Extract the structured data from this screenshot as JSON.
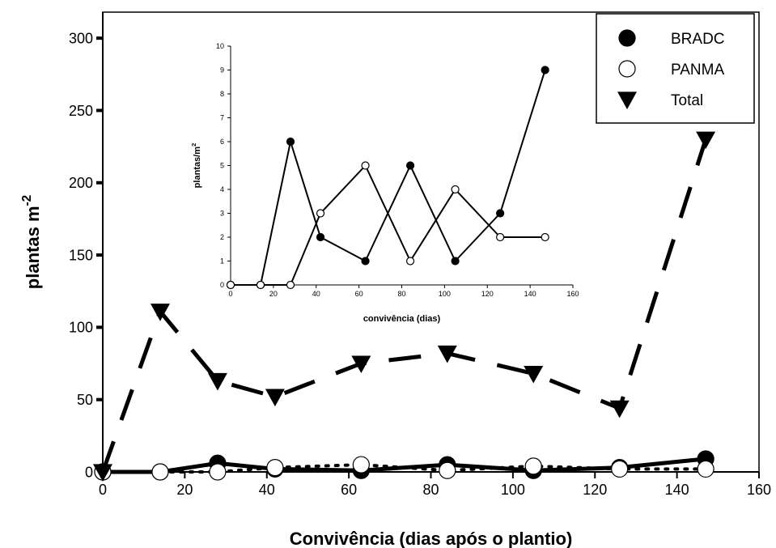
{
  "chart_data": [
    {
      "type": "line",
      "x_label": "Convivência (dias após o plantio)",
      "y_label": "plantas m",
      "y_label_sup": "-2",
      "x": [
        0,
        14,
        28,
        42,
        63,
        84,
        105,
        126,
        147
      ],
      "series": [
        {
          "name": "BRADC",
          "color": "#000000",
          "marker": "filled-circle",
          "line": "solid",
          "values": [
            0,
            0,
            6,
            2,
            1,
            5,
            1,
            3,
            9
          ]
        },
        {
          "name": "PANMA",
          "color": "#000000",
          "marker": "open-circle",
          "line": "dotted",
          "values": [
            0,
            0,
            0,
            3,
            5,
            1,
            4,
            2,
            2
          ]
        },
        {
          "name": "Total",
          "color": "#000000",
          "marker": "triangle",
          "line": "dashed",
          "values": [
            0,
            111,
            63,
            52,
            75,
            82,
            68,
            44,
            230
          ]
        }
      ],
      "xlim": [
        0,
        160
      ],
      "xticks": [
        0,
        20,
        40,
        60,
        80,
        100,
        120,
        140,
        160
      ],
      "ylim": [
        0,
        318
      ],
      "yticks": [
        0,
        50,
        100,
        150,
        200,
        250,
        300
      ],
      "legend": "top-right",
      "frame": true
    },
    {
      "type": "line",
      "x_label": "convivência (dias)",
      "y_label": "plantas/m",
      "y_label_sup": "2",
      "x": [
        0,
        14,
        28,
        42,
        63,
        84,
        105,
        126,
        147
      ],
      "series": [
        {
          "color": "#000000",
          "marker": "filled-circle",
          "line": "solid",
          "values": [
            0,
            0,
            6,
            2,
            1,
            5,
            1,
            3,
            9
          ]
        },
        {
          "color": "#000000",
          "marker": "open-circle",
          "line": "solid",
          "values": [
            0,
            0,
            0,
            3,
            5,
            1,
            4,
            2,
            2
          ]
        }
      ],
      "xlim": [
        0,
        160
      ],
      "xticks": [
        0,
        20,
        40,
        60,
        80,
        100,
        120,
        140,
        160
      ],
      "ylim": [
        0,
        10
      ],
      "yticks": [
        0,
        1,
        2,
        3,
        4,
        5,
        6,
        7,
        8,
        9,
        10
      ],
      "frame": false
    }
  ]
}
